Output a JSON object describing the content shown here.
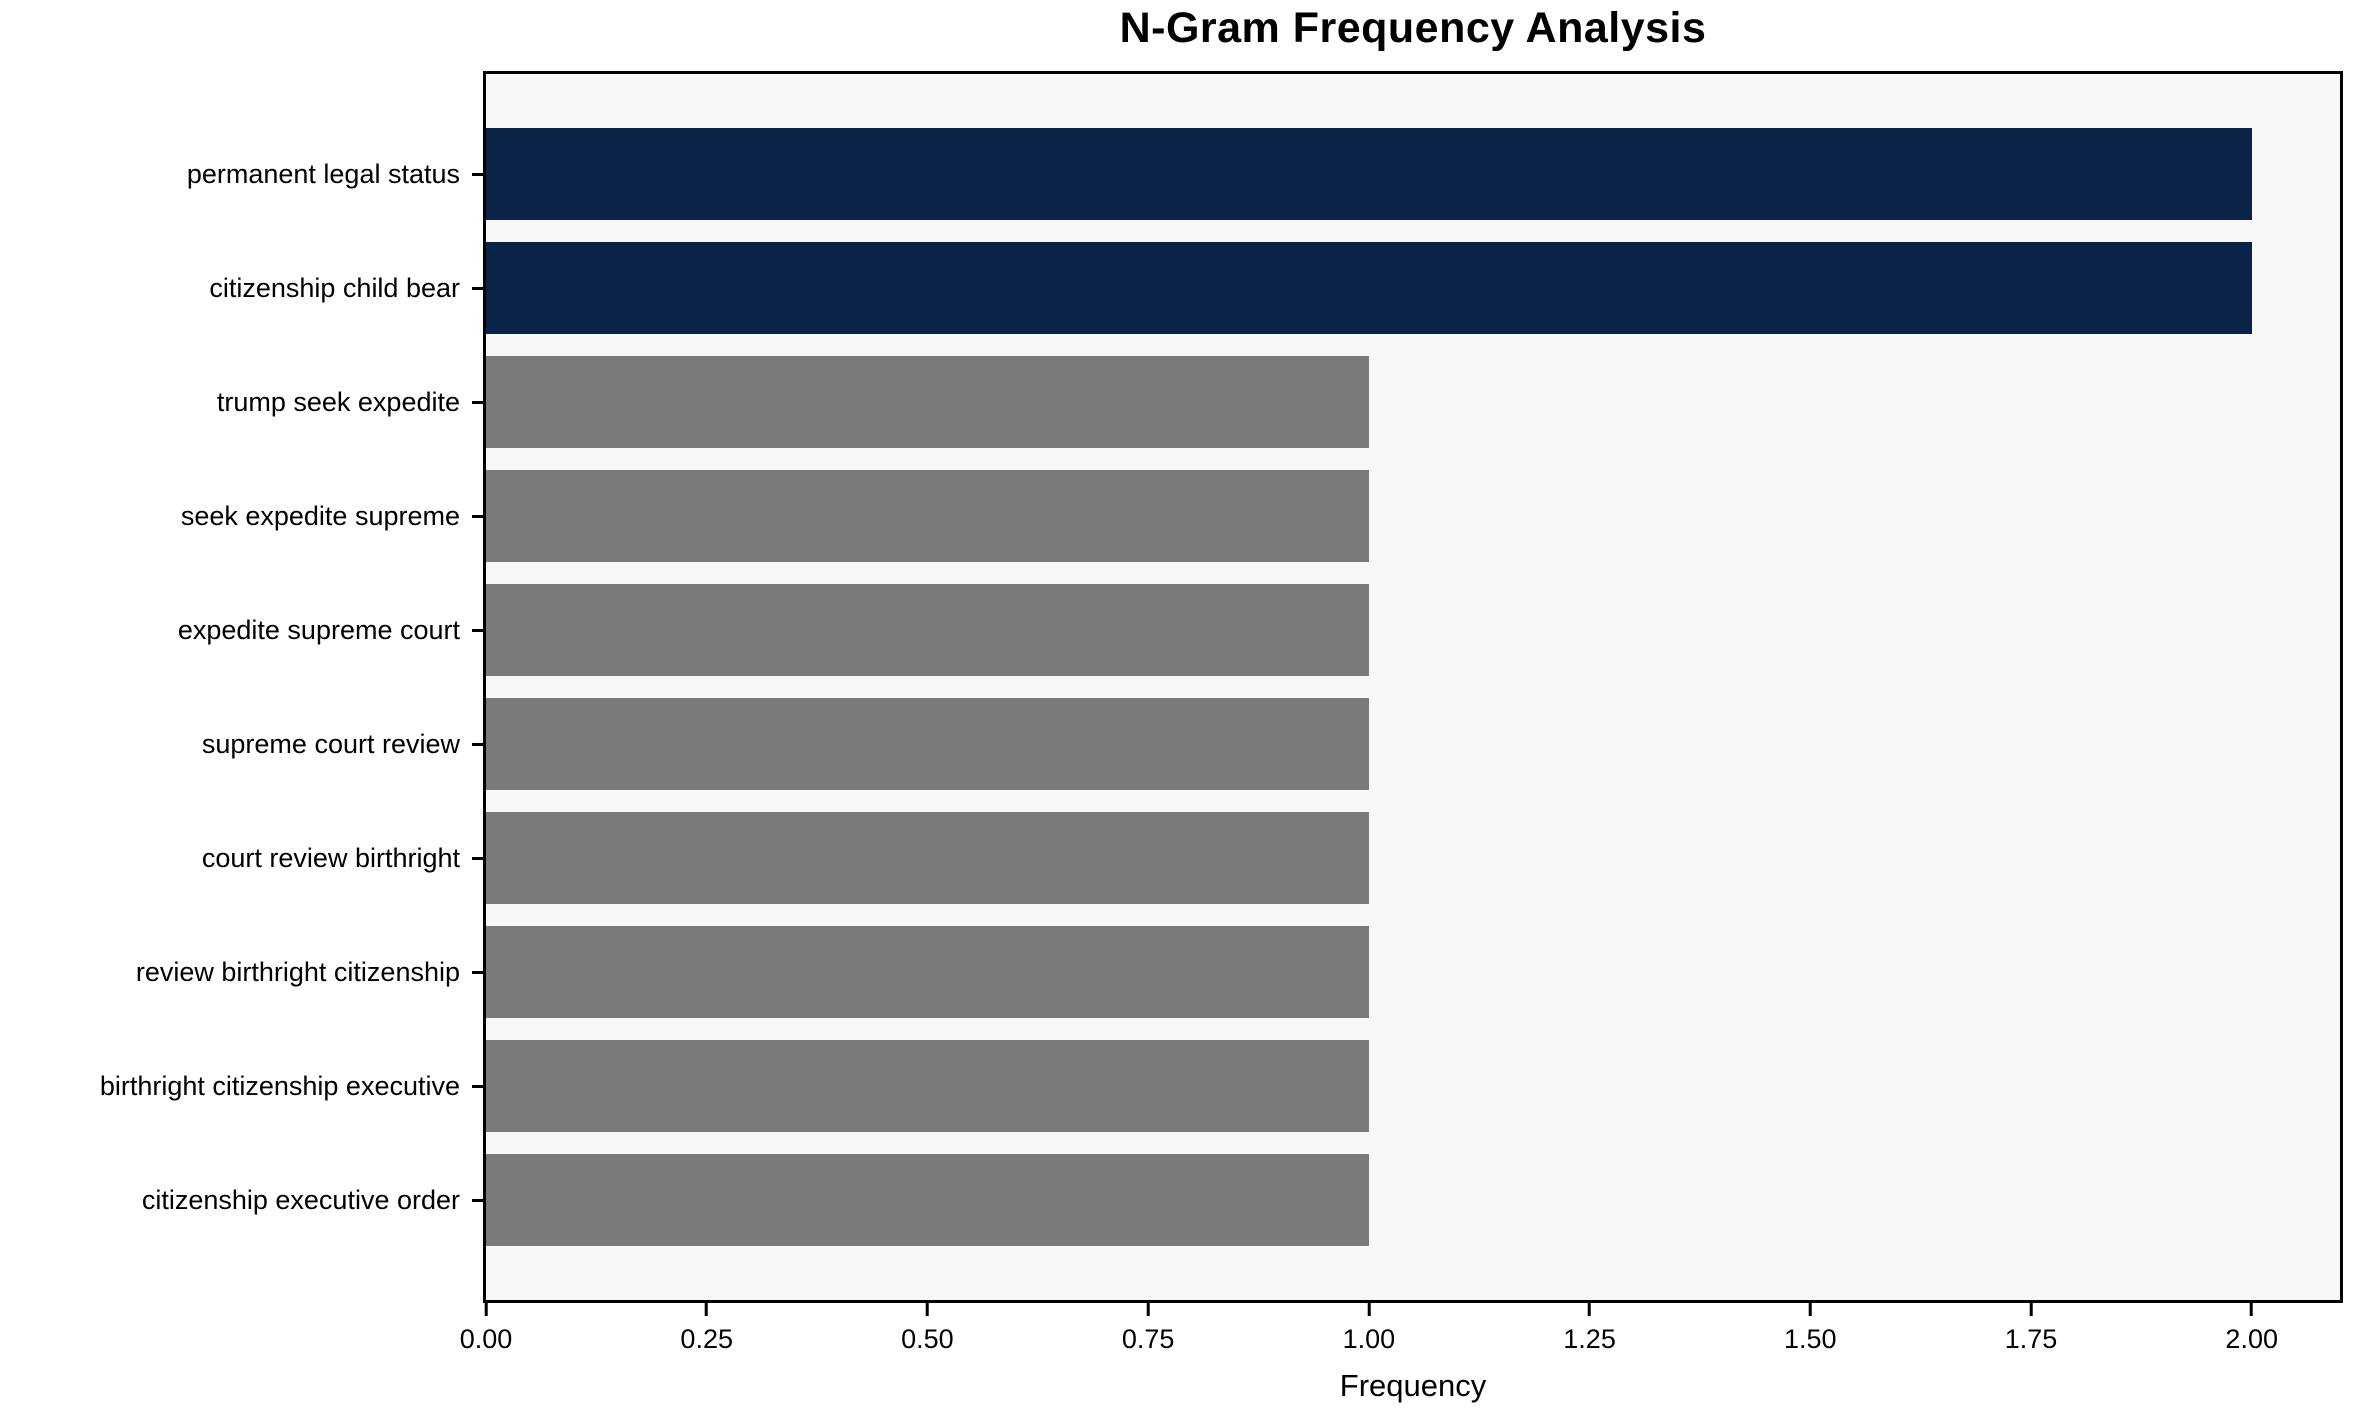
{
  "chart_data": {
    "type": "bar",
    "orientation": "horizontal",
    "title": "N-Gram Frequency Analysis",
    "xlabel": "Frequency",
    "ylabel": "",
    "categories": [
      "permanent legal status",
      "citizenship child bear",
      "trump seek expedite",
      "seek expedite supreme",
      "expedite supreme court",
      "supreme court review",
      "court review birthright",
      "review birthright citizenship",
      "birthright citizenship executive",
      "citizenship executive order"
    ],
    "values": [
      2,
      2,
      1,
      1,
      1,
      1,
      1,
      1,
      1,
      1
    ],
    "xlim": [
      0,
      2.1
    ],
    "xticks": [
      {
        "value": 0.0,
        "label": "0.00"
      },
      {
        "value": 0.25,
        "label": "0.25"
      },
      {
        "value": 0.5,
        "label": "0.50"
      },
      {
        "value": 0.75,
        "label": "0.75"
      },
      {
        "value": 1.0,
        "label": "1.00"
      },
      {
        "value": 1.25,
        "label": "1.25"
      },
      {
        "value": 1.5,
        "label": "1.50"
      },
      {
        "value": 1.75,
        "label": "1.75"
      },
      {
        "value": 2.0,
        "label": "2.00"
      }
    ],
    "bar_colors": [
      "#0b2347",
      "#0b2347",
      "#7a7a78",
      "#7a7a78",
      "#7a7a78",
      "#7a7a78",
      "#7a7a78",
      "#7a7a78",
      "#7a7a78",
      "#7a7a78"
    ],
    "colors": {
      "highlight": "#0b2347",
      "default": "#7a7a78",
      "plot_background": "#f7f7f7",
      "page_background": "#ffffff",
      "spine": "#000000"
    },
    "grid": false,
    "legend": false
  }
}
